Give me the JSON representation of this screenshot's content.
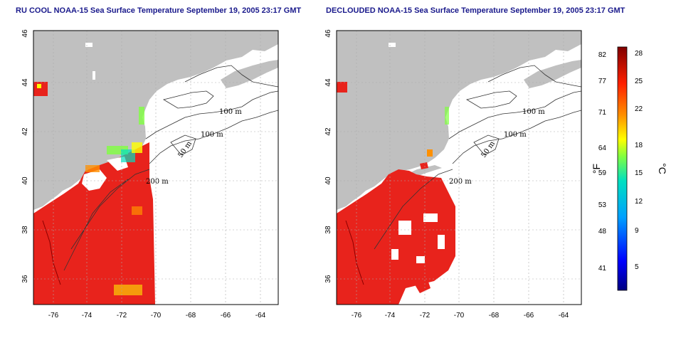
{
  "titles": {
    "left": "RU COOL NOAA-15 Sea Surface Temperature September 19, 2005 23:17 GMT",
    "right": "DECLOUDED NOAA-15 Sea Surface Temperature September 19, 2005 23:17 GMT"
  },
  "axes": {
    "lon_ticks": [
      "-76",
      "-74",
      "-72",
      "-70",
      "-68",
      "-66",
      "-64"
    ],
    "lat_ticks": [
      "44",
      "42",
      "40",
      "38",
      "36"
    ],
    "lat_top_label": "46"
  },
  "contours": {
    "labels": [
      "100 m",
      "100 m",
      "50 m",
      "200 m"
    ]
  },
  "colorbar": {
    "fahrenheit_ticks": [
      "82",
      "77",
      "71",
      "64",
      "59",
      "53",
      "48",
      "41"
    ],
    "celsius_ticks": [
      "28",
      "25",
      "22",
      "18",
      "15",
      "12",
      "9",
      "5"
    ],
    "fahrenheit_unit": "°F",
    "celsius_unit": "°C"
  },
  "colors": {
    "land": "#c0c0c0",
    "cloud_or_nodata": "#ffffff",
    "sst_warm": "#e8231c",
    "title": "#1a1a8c"
  }
}
